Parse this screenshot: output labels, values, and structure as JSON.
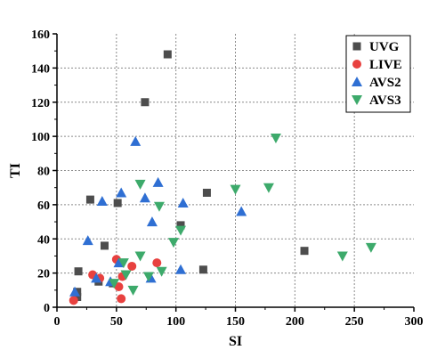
{
  "chart_data": {
    "type": "scatter",
    "title": "",
    "xlabel": "SI",
    "ylabel": "TI",
    "xlim": [
      0,
      300
    ],
    "ylim": [
      0,
      160
    ],
    "xticks": [
      0,
      50,
      100,
      150,
      200,
      250,
      300
    ],
    "yticks": [
      0,
      20,
      40,
      60,
      80,
      100,
      120,
      140,
      160
    ],
    "grid": true,
    "legend_position": "top-right",
    "series": [
      {
        "name": "UVG",
        "marker": "square",
        "color": "#4d4d4d",
        "points": [
          [
            93,
            148
          ],
          [
            74,
            120
          ],
          [
            28,
            63
          ],
          [
            51,
            61
          ],
          [
            126,
            67
          ],
          [
            104,
            48
          ],
          [
            40,
            36
          ],
          [
            123,
            22
          ],
          [
            18,
            21
          ],
          [
            208,
            33
          ],
          [
            35,
            15
          ],
          [
            17,
            9
          ],
          [
            17,
            6
          ],
          [
            47,
            14
          ]
        ]
      },
      {
        "name": "LIVE",
        "marker": "circle",
        "color": "#e8413f",
        "points": [
          [
            14,
            4
          ],
          [
            30,
            19
          ],
          [
            36,
            17
          ],
          [
            50,
            28
          ],
          [
            52,
            12
          ],
          [
            55,
            18
          ],
          [
            63,
            24
          ],
          [
            84,
            26
          ],
          [
            54,
            5
          ]
        ]
      },
      {
        "name": "AVS2",
        "marker": "triangle-up",
        "color": "#2f6fd3",
        "points": [
          [
            66,
            97
          ],
          [
            85,
            73
          ],
          [
            54,
            67
          ],
          [
            74,
            64
          ],
          [
            38,
            62
          ],
          [
            106,
            61
          ],
          [
            155,
            56
          ],
          [
            80,
            50
          ],
          [
            26,
            39
          ],
          [
            52,
            26
          ],
          [
            104,
            22
          ],
          [
            79,
            17
          ],
          [
            33,
            17
          ],
          [
            45,
            15
          ],
          [
            15,
            9
          ]
        ]
      },
      {
        "name": "AVS3",
        "marker": "triangle-down",
        "color": "#3daa6b",
        "points": [
          [
            184,
            99
          ],
          [
            70,
            72
          ],
          [
            150,
            69
          ],
          [
            178,
            70
          ],
          [
            86,
            59
          ],
          [
            104,
            45
          ],
          [
            98,
            38
          ],
          [
            264,
            35
          ],
          [
            240,
            30
          ],
          [
            70,
            30
          ],
          [
            56,
            26
          ],
          [
            88,
            21
          ],
          [
            77,
            18
          ],
          [
            58,
            19
          ],
          [
            48,
            14
          ],
          [
            64,
            10
          ]
        ]
      }
    ]
  }
}
